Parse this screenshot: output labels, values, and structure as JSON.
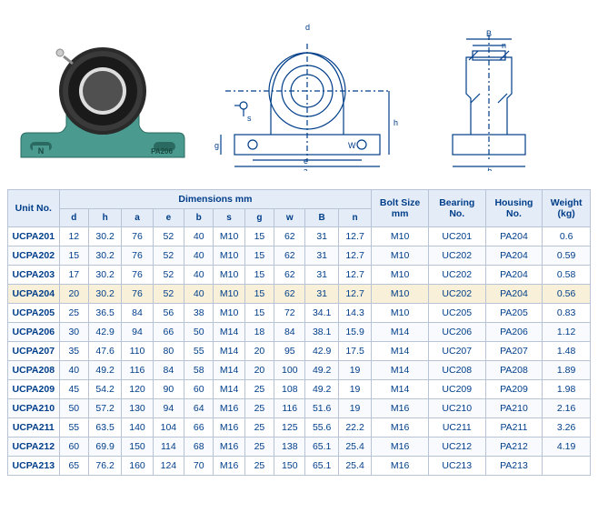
{
  "product_label_left": "N",
  "product_label_right": "PA206",
  "product_colors": {
    "housing": "#4a9a8f",
    "bearing_outer": "#2a2a2a",
    "bore": "#dedede"
  },
  "diagram_labels": {
    "B": "B",
    "n": "n",
    "d": "d",
    "h": "h",
    "g": "g",
    "s": "s",
    "w": "W",
    "e": "e",
    "a": "a",
    "b": "b"
  },
  "headers": {
    "unit_no": "Unit No.",
    "dimensions": "Dimensions mm",
    "bolt_size": "Bolt Size mm",
    "bearing_no": "Bearing No.",
    "housing_no": "Housing No.",
    "weight": "Weight (kg)"
  },
  "sub_headers": [
    "d",
    "h",
    "a",
    "e",
    "b",
    "s",
    "g",
    "w",
    "B",
    "n"
  ],
  "col_widths": {
    "unit_no": 56,
    "dim": 36,
    "bolt": 56,
    "bearing": 60,
    "housing": 60,
    "weight": 50
  },
  "highlight_index": 3,
  "rows": [
    {
      "unit": "UCPA201",
      "d": "12",
      "h": "30.2",
      "a": "76",
      "e": "52",
      "b": "40",
      "s": "M10",
      "g": "15",
      "w": "62",
      "B": "31",
      "n": "12.7",
      "bolt": "M10",
      "bearing": "UC201",
      "housing": "PA204",
      "weight": "0.6"
    },
    {
      "unit": "UCPA202",
      "d": "15",
      "h": "30.2",
      "a": "76",
      "e": "52",
      "b": "40",
      "s": "M10",
      "g": "15",
      "w": "62",
      "B": "31",
      "n": "12.7",
      "bolt": "M10",
      "bearing": "UC202",
      "housing": "PA204",
      "weight": "0.59"
    },
    {
      "unit": "UCPA203",
      "d": "17",
      "h": "30.2",
      "a": "76",
      "e": "52",
      "b": "40",
      "s": "M10",
      "g": "15",
      "w": "62",
      "B": "31",
      "n": "12.7",
      "bolt": "M10",
      "bearing": "UC202",
      "housing": "PA204",
      "weight": "0.58"
    },
    {
      "unit": "UCPA204",
      "d": "20",
      "h": "30.2",
      "a": "76",
      "e": "52",
      "b": "40",
      "s": "M10",
      "g": "15",
      "w": "62",
      "B": "31",
      "n": "12.7",
      "bolt": "M10",
      "bearing": "UC202",
      "housing": "PA204",
      "weight": "0.56"
    },
    {
      "unit": "UCPA205",
      "d": "25",
      "h": "36.5",
      "a": "84",
      "e": "56",
      "b": "38",
      "s": "M10",
      "g": "15",
      "w": "72",
      "B": "34.1",
      "n": "14.3",
      "bolt": "M10",
      "bearing": "UC205",
      "housing": "PA205",
      "weight": "0.83"
    },
    {
      "unit": "UCPA206",
      "d": "30",
      "h": "42.9",
      "a": "94",
      "e": "66",
      "b": "50",
      "s": "M14",
      "g": "18",
      "w": "84",
      "B": "38.1",
      "n": "15.9",
      "bolt": "M14",
      "bearing": "UC206",
      "housing": "PA206",
      "weight": "1.12"
    },
    {
      "unit": "UCPA207",
      "d": "35",
      "h": "47.6",
      "a": "110",
      "e": "80",
      "b": "55",
      "s": "M14",
      "g": "20",
      "w": "95",
      "B": "42.9",
      "n": "17.5",
      "bolt": "M14",
      "bearing": "UC207",
      "housing": "PA207",
      "weight": "1.48"
    },
    {
      "unit": "UCPA208",
      "d": "40",
      "h": "49.2",
      "a": "116",
      "e": "84",
      "b": "58",
      "s": "M14",
      "g": "20",
      "w": "100",
      "B": "49.2",
      "n": "19",
      "bolt": "M14",
      "bearing": "UC208",
      "housing": "PA208",
      "weight": "1.89"
    },
    {
      "unit": "UCPA209",
      "d": "45",
      "h": "54.2",
      "a": "120",
      "e": "90",
      "b": "60",
      "s": "M14",
      "g": "25",
      "w": "108",
      "B": "49.2",
      "n": "19",
      "bolt": "M14",
      "bearing": "UC209",
      "housing": "PA209",
      "weight": "1.98"
    },
    {
      "unit": "UCPA210",
      "d": "50",
      "h": "57.2",
      "a": "130",
      "e": "94",
      "b": "64",
      "s": "M16",
      "g": "25",
      "w": "116",
      "B": "51.6",
      "n": "19",
      "bolt": "M16",
      "bearing": "UC210",
      "housing": "PA210",
      "weight": "2.16"
    },
    {
      "unit": "UCPA211",
      "d": "55",
      "h": "63.5",
      "a": "140",
      "e": "104",
      "b": "66",
      "s": "M16",
      "g": "25",
      "w": "125",
      "B": "55.6",
      "n": "22.2",
      "bolt": "M16",
      "bearing": "UC211",
      "housing": "PA211",
      "weight": "3.26"
    },
    {
      "unit": "UCPA212",
      "d": "60",
      "h": "69.9",
      "a": "150",
      "e": "114",
      "b": "68",
      "s": "M16",
      "g": "25",
      "w": "138",
      "B": "65.1",
      "n": "25.4",
      "bolt": "M16",
      "bearing": "UC212",
      "housing": "PA212",
      "weight": "4.19"
    },
    {
      "unit": "UCPA213",
      "d": "65",
      "h": "76.2",
      "a": "160",
      "e": "124",
      "b": "70",
      "s": "M16",
      "g": "25",
      "w": "150",
      "B": "65.1",
      "n": "25.4",
      "bolt": "M16",
      "bearing": "UC213",
      "housing": "PA213",
      "weight": ""
    }
  ]
}
